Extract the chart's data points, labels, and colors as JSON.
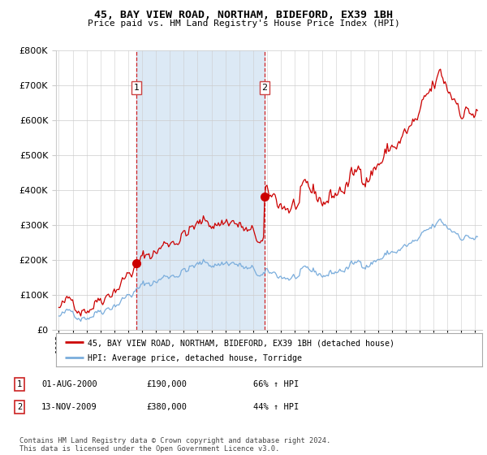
{
  "title": "45, BAY VIEW ROAD, NORTHAM, BIDEFORD, EX39 1BH",
  "subtitle": "Price paid vs. HM Land Registry's House Price Index (HPI)",
  "sale1_t": 2000.583,
  "sale1_price": 190000,
  "sale2_t": 2009.833,
  "sale2_price": 380000,
  "legend_house": "45, BAY VIEW ROAD, NORTHAM, BIDEFORD, EX39 1BH (detached house)",
  "legend_hpi": "HPI: Average price, detached house, Torridge",
  "footer": "Contains HM Land Registry data © Crown copyright and database right 2024.\nThis data is licensed under the Open Government Licence v3.0.",
  "table_rows": [
    [
      "1",
      "01-AUG-2000",
      "£190,000",
      "66% ↑ HPI"
    ],
    [
      "2",
      "13-NOV-2009",
      "£380,000",
      "44% ↑ HPI"
    ]
  ],
  "hpi_color": "#7aaddc",
  "house_color": "#cc0000",
  "shade_color": "#dce9f5",
  "background": "#ffffff",
  "ylim_max": 800000,
  "xlim_start": 1994.8,
  "xlim_end": 2025.5
}
